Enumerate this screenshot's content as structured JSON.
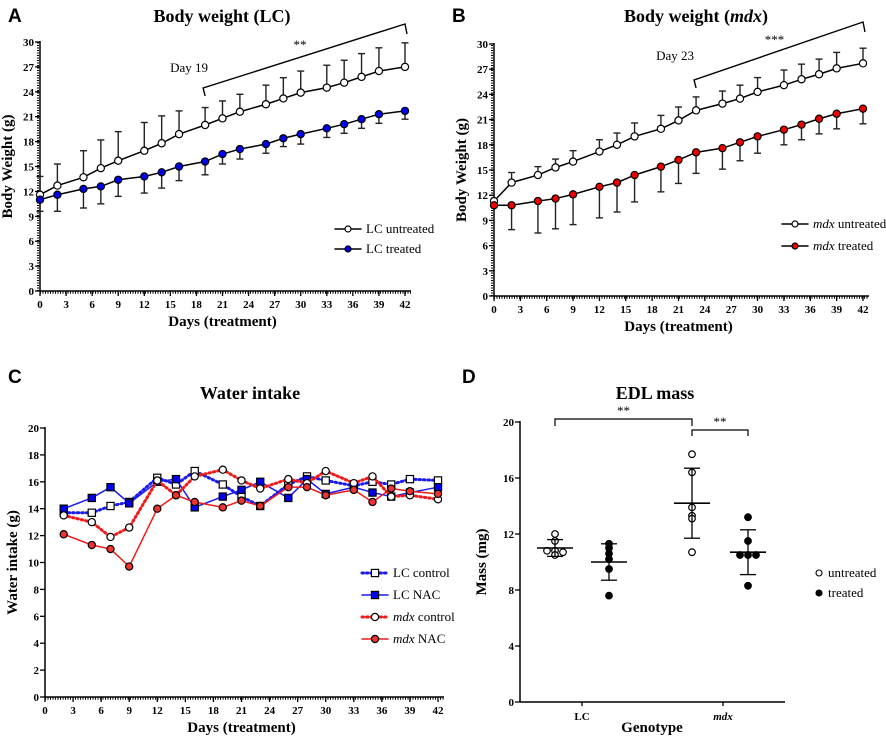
{
  "panels": {
    "A": "A",
    "B": "B",
    "C": "C",
    "D": "D"
  },
  "chart_data": [
    {
      "id": "A",
      "type": "line",
      "title": "Body weight (LC)",
      "xlabel": "Days (treatment)",
      "ylabel": "Body Weight (g)",
      "xlim": [
        0,
        42
      ],
      "ylim": [
        0,
        30
      ],
      "xticks": [
        0,
        3,
        6,
        9,
        12,
        15,
        18,
        21,
        24,
        27,
        30,
        33,
        36,
        39,
        42
      ],
      "yticks": [
        0,
        3,
        6,
        9,
        12,
        15,
        18,
        21,
        24,
        27,
        30
      ],
      "x": [
        0,
        2,
        5,
        7,
        9,
        12,
        14,
        16,
        19,
        21,
        23,
        26,
        28,
        30,
        33,
        35,
        37,
        39,
        42
      ],
      "series": [
        {
          "name": "LC untreated",
          "marker": "open-circle",
          "color": "#000000",
          "fill": "#ffffff",
          "values": [
            11.6,
            12.7,
            13.7,
            14.8,
            15.7,
            16.9,
            17.8,
            18.9,
            20.0,
            20.8,
            21.6,
            22.5,
            23.2,
            23.9,
            24.5,
            25.1,
            25.8,
            26.5,
            27.0
          ],
          "err": [
            2.2,
            2.6,
            3.2,
            3.4,
            3.5,
            3.4,
            3.3,
            2.8,
            2.1,
            2.1,
            2.1,
            2.3,
            2.5,
            2.6,
            2.7,
            2.7,
            2.8,
            2.8,
            2.9
          ],
          "err_dir": "up"
        },
        {
          "name": "LC treated",
          "marker": "filled-circle",
          "color": "#000000",
          "fill": "#0000ee",
          "values": [
            11.0,
            11.6,
            12.3,
            12.6,
            13.4,
            13.8,
            14.3,
            15.0,
            15.6,
            16.5,
            17.1,
            17.7,
            18.4,
            18.9,
            19.6,
            20.1,
            20.7,
            21.3,
            21.7
          ],
          "err": [
            1.4,
            2.0,
            2.3,
            2.1,
            2.0,
            2.0,
            1.9,
            1.7,
            1.6,
            1.2,
            1.2,
            1.1,
            1.0,
            1.2,
            1.1,
            1.1,
            1.1,
            1.1,
            1.0
          ],
          "err_dir": "down"
        }
      ],
      "annotations": [
        {
          "text": "Day 19",
          "x": 19
        },
        {
          "text": "**",
          "from_x": 19,
          "to_x": 42
        }
      ],
      "legend": "right-middle"
    },
    {
      "id": "B",
      "type": "line",
      "title": "Body weight (",
      "title_italic": "mdx",
      "title_end": ")",
      "xlabel": "Days (treatment)",
      "ylabel": "Body Weight (g)",
      "xlim": [
        0,
        42
      ],
      "ylim": [
        0,
        30
      ],
      "xticks": [
        0,
        3,
        6,
        9,
        12,
        15,
        18,
        21,
        24,
        27,
        30,
        33,
        36,
        39,
        42
      ],
      "yticks": [
        0,
        3,
        6,
        9,
        12,
        15,
        18,
        21,
        24,
        27,
        30
      ],
      "x": [
        0,
        2,
        5,
        7,
        9,
        12,
        14,
        16,
        19,
        21,
        23,
        26,
        28,
        30,
        33,
        35,
        37,
        39,
        42
      ],
      "series": [
        {
          "name": "mdx untreated",
          "name_italic": "mdx",
          "name_rest": " untreated",
          "marker": "open-circle",
          "color": "#000000",
          "fill": "#ffffff",
          "values": [
            11.3,
            13.5,
            14.4,
            15.3,
            16.0,
            17.2,
            18.0,
            19.0,
            19.9,
            20.9,
            22.1,
            22.9,
            23.5,
            24.3,
            25.1,
            25.8,
            26.4,
            27.1,
            27.7
          ],
          "err": [
            0.0,
            1.2,
            1.0,
            1.0,
            1.3,
            1.4,
            1.4,
            1.6,
            1.6,
            1.6,
            1.6,
            1.5,
            1.6,
            1.7,
            1.8,
            1.8,
            1.8,
            1.9,
            1.8
          ],
          "err_dir": "up"
        },
        {
          "name": "mdx treated",
          "name_italic": "mdx",
          "name_rest": " treated",
          "marker": "filled-circle",
          "color": "#000000",
          "fill": "#ee0000",
          "values": [
            10.8,
            10.8,
            11.3,
            11.6,
            12.1,
            13.0,
            13.5,
            14.4,
            15.4,
            16.2,
            17.1,
            17.6,
            18.3,
            19.0,
            19.8,
            20.4,
            21.1,
            21.7,
            22.3
          ],
          "err": [
            0.0,
            2.9,
            3.8,
            3.6,
            3.6,
            3.7,
            3.5,
            3.2,
            3.0,
            2.8,
            2.5,
            2.5,
            2.2,
            2.0,
            1.8,
            1.8,
            1.8,
            1.8,
            1.8
          ],
          "err_dir": "down"
        }
      ],
      "annotations": [
        {
          "text": "Day 23",
          "x": 23
        },
        {
          "text": "***",
          "from_x": 23,
          "to_x": 42
        }
      ],
      "legend": "right-middle"
    },
    {
      "id": "C",
      "type": "line",
      "title": "Water intake",
      "xlabel": "Days (treatment)",
      "ylabel": "Water intake (g)",
      "xlim": [
        0,
        42
      ],
      "ylim": [
        0,
        20
      ],
      "xticks": [
        0,
        3,
        6,
        9,
        12,
        15,
        18,
        21,
        24,
        27,
        30,
        33,
        36,
        39,
        42
      ],
      "yticks": [
        0,
        2,
        4,
        6,
        8,
        10,
        12,
        14,
        16,
        18,
        20
      ],
      "x": [
        2,
        5,
        7,
        9,
        12,
        14,
        16,
        19,
        21,
        23,
        26,
        28,
        30,
        33,
        35,
        37,
        39,
        42
      ],
      "series": [
        {
          "name": "LC control",
          "line": "dotted",
          "color": "#1a1aee",
          "marker": "open-square",
          "fill": "#ffffff",
          "values": [
            13.7,
            13.7,
            14.2,
            14.5,
            16.3,
            15.8,
            16.8,
            15.8,
            14.9,
            14.2,
            15.8,
            16.4,
            16.1,
            15.7,
            16.0,
            15.8,
            16.2,
            16.1
          ]
        },
        {
          "name": "LC NAC",
          "line": "solid",
          "color": "#1a1aee",
          "marker": "filled-square",
          "fill": "#0000ee",
          "values": [
            14.0,
            14.8,
            15.6,
            14.4,
            16.0,
            16.2,
            14.1,
            14.9,
            15.4,
            16.0,
            14.8,
            16.2,
            15.1,
            15.6,
            15.2,
            14.9,
            15.2,
            15.6
          ]
        },
        {
          "name": "mdx control",
          "name_italic": "mdx",
          "name_rest": " control",
          "line": "dotted",
          "color": "#ee1a1a",
          "marker": "open-circle",
          "fill": "#ffffff",
          "values": [
            13.5,
            13.0,
            11.9,
            12.6,
            16.1,
            15.0,
            16.4,
            16.9,
            16.1,
            15.5,
            16.2,
            15.9,
            16.8,
            15.9,
            16.4,
            14.9,
            15.0,
            14.7
          ]
        },
        {
          "name": "mdx NAC",
          "name_italic": "mdx",
          "name_rest": " NAC",
          "line": "solid",
          "color": "#ee1a1a",
          "marker": "filled-circle",
          "fill": "#ee3333",
          "values": [
            12.1,
            11.3,
            11.0,
            9.7,
            14.0,
            15.0,
            14.5,
            14.1,
            14.6,
            14.2,
            15.6,
            15.6,
            15.0,
            15.4,
            14.5,
            15.5,
            15.3,
            15.1
          ]
        }
      ],
      "legend": "right-middle"
    },
    {
      "id": "D",
      "type": "scatter",
      "title": "EDL mass",
      "xlabel": "Genotype",
      "ylabel": "Mass (mg)",
      "ylim": [
        0,
        20
      ],
      "yticks": [
        0,
        4,
        8,
        12,
        16,
        20
      ],
      "categories": [
        {
          "label": "LC",
          "italic": false
        },
        {
          "label": "mdx",
          "italic": true
        }
      ],
      "groups": [
        {
          "genotype": "LC",
          "treatment": "untreated",
          "marker": "open-circle",
          "points": [
            12.0,
            11.5,
            10.8,
            10.8,
            10.7,
            10.5
          ],
          "mean": 11.0,
          "sd": 0.6
        },
        {
          "genotype": "LC",
          "treatment": "treated",
          "marker": "filled-circle",
          "points": [
            11.3,
            11.0,
            10.6,
            10.2,
            9.5,
            7.6
          ],
          "mean": 10.0,
          "sd": 1.3
        },
        {
          "genotype": "mdx",
          "treatment": "untreated",
          "marker": "open-circle",
          "points": [
            17.7,
            16.4,
            13.9,
            13.3,
            13.1,
            10.7
          ],
          "mean": 14.2,
          "sd": 2.5
        },
        {
          "genotype": "mdx",
          "treatment": "treated",
          "marker": "filled-circle",
          "points": [
            13.2,
            11.5,
            10.5,
            10.5,
            10.5,
            8.3
          ],
          "mean": 10.7,
          "sd": 1.6
        }
      ],
      "significance": [
        {
          "text": "**",
          "between": [
            "LC untreated",
            "mdx untreated"
          ]
        },
        {
          "text": "**",
          "between": [
            "mdx untreated",
            "mdx treated"
          ]
        }
      ],
      "legend": [
        {
          "label": "untreated",
          "marker": "open-circle"
        },
        {
          "label": "treated",
          "marker": "filled-circle"
        }
      ],
      "legend_position": "right-middle"
    }
  ]
}
